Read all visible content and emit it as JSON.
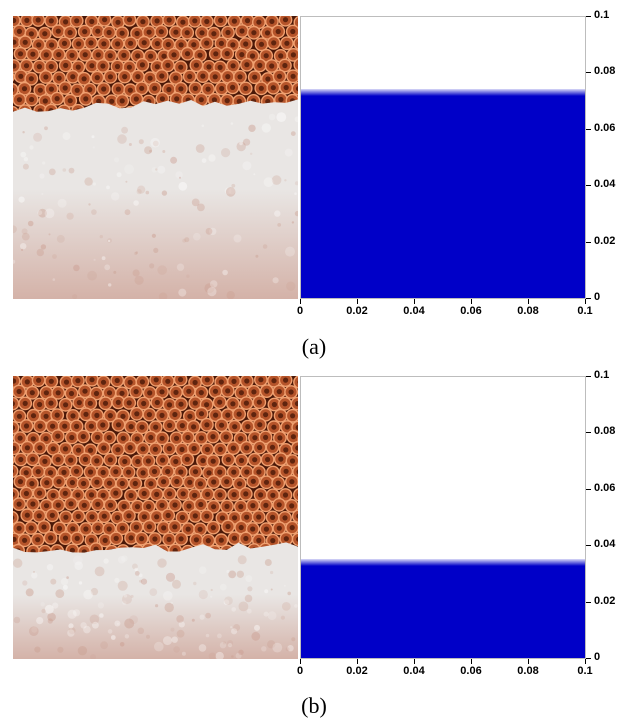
{
  "panels": [
    {
      "caption": "(a)",
      "interface_level": 0.074,
      "photo_interface_fraction": 0.33,
      "chart_data": {
        "type": "area",
        "x_ticks": [
          "0",
          "0.02",
          "0.04",
          "0.06",
          "0.08",
          "0.1"
        ],
        "y_ticks": [
          "0",
          "0.02",
          "0.04",
          "0.06",
          "0.08",
          "0.1"
        ],
        "xlim": [
          0,
          0.1
        ],
        "ylim": [
          0,
          0.1
        ],
        "fill_top": 0.074,
        "fill_color": "#0000c8"
      }
    },
    {
      "caption": "(b)",
      "interface_level": 0.035,
      "photo_interface_fraction": 0.62,
      "chart_data": {
        "type": "area",
        "x_ticks": [
          "0",
          "0.02",
          "0.04",
          "0.06",
          "0.08",
          "0.1"
        ],
        "y_ticks": [
          "0",
          "0.02",
          "0.04",
          "0.06",
          "0.08",
          "0.1"
        ],
        "xlim": [
          0,
          0.1
        ],
        "ylim": [
          0,
          0.1
        ],
        "fill_top": 0.035,
        "fill_color": "#0000c8"
      }
    }
  ],
  "colors": {
    "copper_bead": "#b5542a",
    "copper_dark": "#4a1808",
    "copper_highlight": "#f0a070",
    "frost_white": "#e9e6e4",
    "frost_pink": "#d4b2a8",
    "fluid_blue": "#0000c8"
  }
}
